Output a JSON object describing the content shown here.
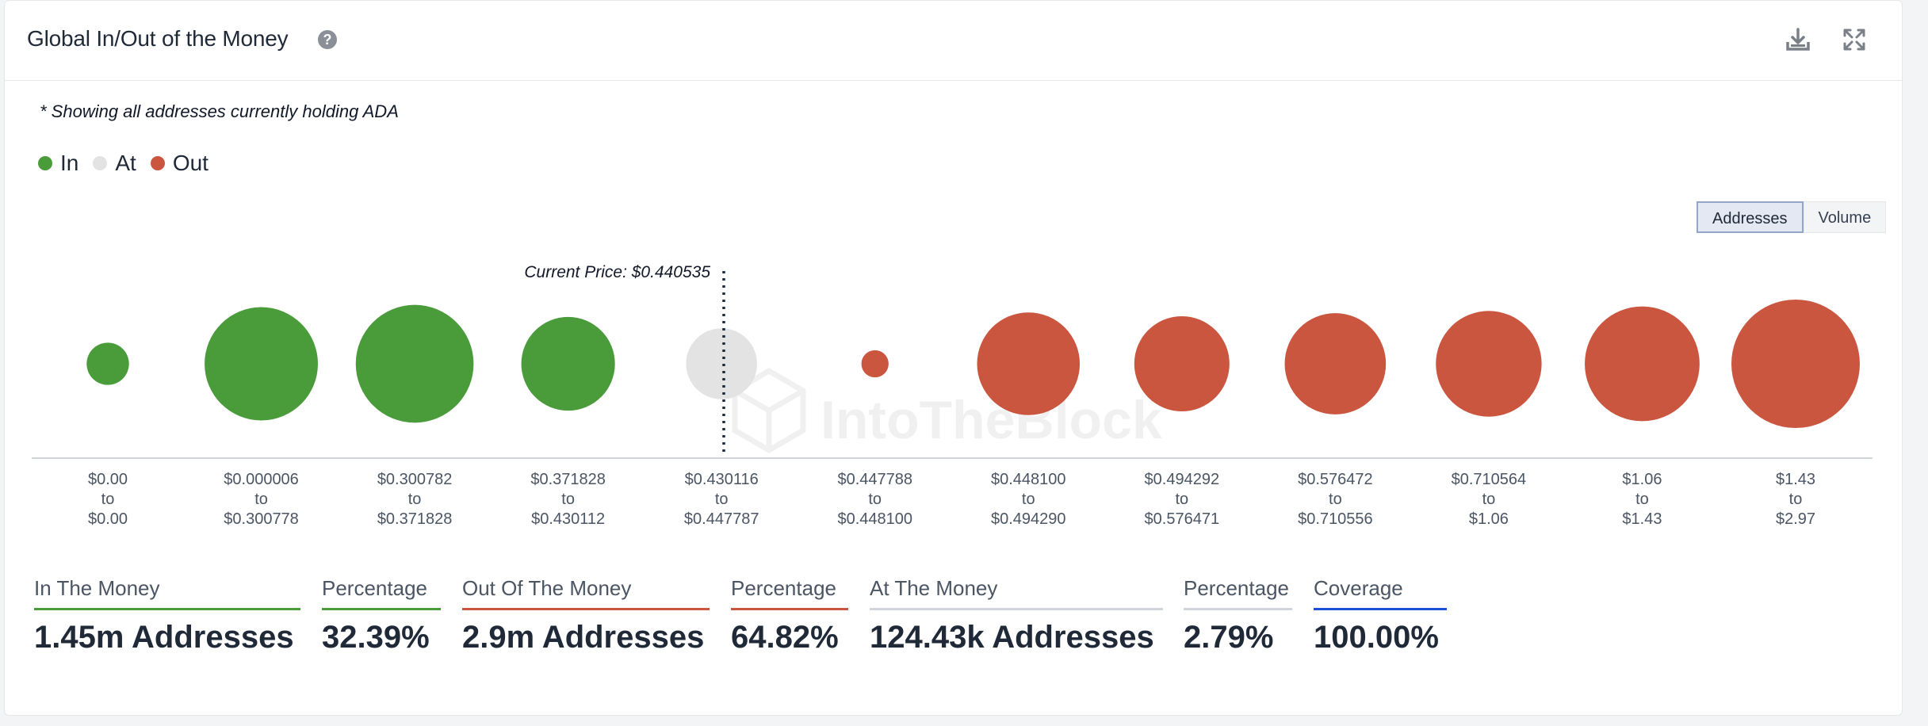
{
  "header": {
    "title": "Global In/Out of the Money",
    "help_icon": "question-circle-icon",
    "download_icon": "download-icon",
    "expand_icon": "expand-icon"
  },
  "note": "* Showing all addresses currently holding ADA",
  "legend": [
    {
      "label": "In",
      "color": "#4a9c3b"
    },
    {
      "label": "At",
      "color": "#e3e3e3"
    },
    {
      "label": "Out",
      "color": "#cb5640"
    }
  ],
  "toggle": {
    "addresses_label": "Addresses",
    "volume_label": "Volume",
    "active": "Addresses"
  },
  "watermark": "IntoTheBlock",
  "chart_data": {
    "type": "bubble",
    "title": "Global In/Out of the Money",
    "current_price_label": "Current Price: $0.440535",
    "current_price": 0.440535,
    "buckets": [
      {
        "from": "$0.00",
        "to": "$0.00",
        "status": "In",
        "size": 28
      },
      {
        "from": "$0.000006",
        "to": "$0.300778",
        "status": "In",
        "size": 75
      },
      {
        "from": "$0.300782",
        "to": "$0.371828",
        "status": "In",
        "size": 78
      },
      {
        "from": "$0.371828",
        "to": "$0.430112",
        "status": "In",
        "size": 62
      },
      {
        "from": "$0.430116",
        "to": "$0.447787",
        "status": "At",
        "size": 47
      },
      {
        "from": "$0.447788",
        "to": "$0.448100",
        "status": "Out",
        "size": 18
      },
      {
        "from": "$0.448100",
        "to": "$0.494290",
        "status": "Out",
        "size": 68
      },
      {
        "from": "$0.494292",
        "to": "$0.576471",
        "status": "Out",
        "size": 63
      },
      {
        "from": "$0.576472",
        "to": "$0.710556",
        "status": "Out",
        "size": 67
      },
      {
        "from": "$0.710564",
        "to": "$1.06",
        "status": "Out",
        "size": 70
      },
      {
        "from": "$1.06",
        "to": "$1.43",
        "status": "Out",
        "size": 76
      },
      {
        "from": "$1.43",
        "to": "$2.97",
        "status": "Out",
        "size": 85
      }
    ],
    "range_separator": "to"
  },
  "stats": [
    {
      "label": "In The Money",
      "value": "1.45m Addresses",
      "color": "#4a9c3b"
    },
    {
      "label": "Percentage",
      "value": "32.39%",
      "color": "#4a9c3b"
    },
    {
      "label": "Out Of The Money",
      "value": "2.9m Addresses",
      "color": "#cb5640"
    },
    {
      "label": "Percentage",
      "value": "64.82%",
      "color": "#cb5640"
    },
    {
      "label": "At The Money",
      "value": "124.43k Addresses",
      "color": "#d1d5db"
    },
    {
      "label": "Percentage",
      "value": "2.79%",
      "color": "#d1d5db"
    },
    {
      "label": "Coverage",
      "value": "100.00%",
      "color": "#1d4ed8"
    }
  ]
}
